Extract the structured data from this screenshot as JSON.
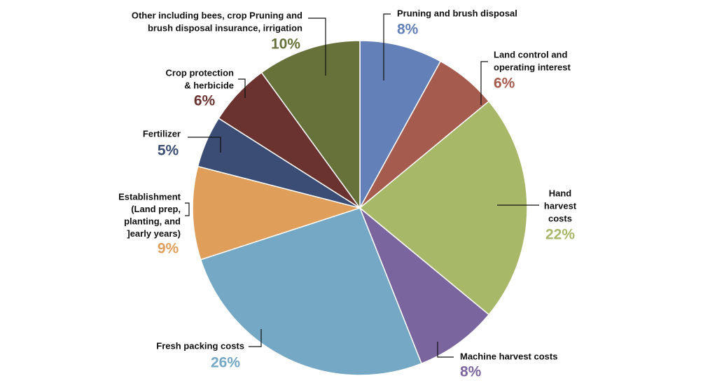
{
  "chart_data": {
    "type": "pie",
    "categories": [
      [
        "Pruning and brush disposal"
      ],
      [
        "Land control and",
        "operating interest"
      ],
      [
        "Hand",
        "harvest",
        "costs"
      ],
      [
        "Machine harvest costs"
      ],
      [
        "Fresh packing costs"
      ],
      [
        "Establishment",
        "(Land prep,",
        "planting, and",
        "]early years)"
      ],
      [
        "Fertilizer"
      ],
      [
        "Crop protection",
        "& herbicide"
      ],
      [
        "Other including bees, crop Pruning and",
        "brush disposal insurance, irrigation"
      ]
    ],
    "values": [
      8,
      6,
      22,
      8,
      26,
      9,
      5,
      6,
      10
    ],
    "value_labels": [
      "8%",
      "6%",
      "22%",
      "8%",
      "26%",
      "9%",
      "5%",
      "6%",
      "10%"
    ],
    "colors": [
      "#6381b8",
      "#a65b4f",
      "#a7b868",
      "#7b659e",
      "#74a8c4",
      "#e09e5b",
      "#3b4d74",
      "#6a332f",
      "#67723b"
    ]
  }
}
